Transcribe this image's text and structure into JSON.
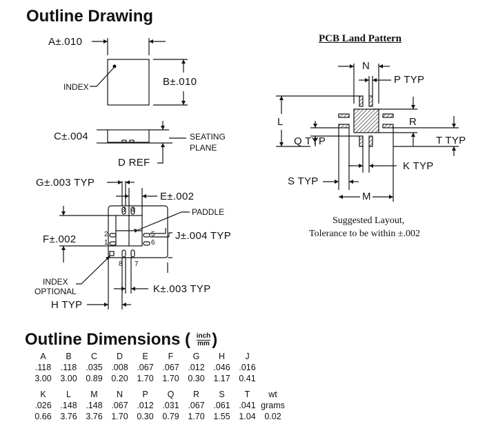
{
  "titles": {
    "outline_drawing": "Outline Drawing",
    "pcb_land_pattern": "PCB Land Pattern",
    "outline_dimensions": "Outline Dimensions (",
    "outline_dimensions_close": ")",
    "unit_top": "inch",
    "unit_bottom": "mm"
  },
  "labels": {
    "a": "A±.010",
    "b": "B±.010",
    "c": "C±.004",
    "d": "D REF",
    "index": "INDEX",
    "seating1": "SEATING",
    "seating2": "PLANE",
    "g": "G±.003 TYP",
    "e": "E±.002",
    "paddle": "PADDLE",
    "f": "F±.002",
    "j": "J±.004 TYP",
    "index_opt1": "INDEX",
    "index_opt2": "OPTIONAL",
    "k": "K±.003 TYP",
    "h": "H TYP",
    "pin3": "3",
    "pin4": "4",
    "pin2": "2",
    "pin1": "1",
    "pin5": "5",
    "pin6": "6",
    "pin8": "8",
    "pin7": "7"
  },
  "pcb_labels": {
    "n": "N",
    "p": "P TYP",
    "l": "L",
    "r": "R",
    "q": "Q TYP",
    "t": "T TYP",
    "k": "K TYP",
    "s": "S TYP",
    "m": "M",
    "note1": "Suggested Layout,",
    "note2": "Tolerance to be within ±.002"
  },
  "dimensions": {
    "row1_headers": [
      "A",
      "B",
      "C",
      "D",
      "E",
      "F",
      "G",
      "H",
      "J"
    ],
    "row1_inch": [
      ".118",
      ".118",
      ".035",
      ".008",
      ".067",
      ".067",
      ".012",
      ".046",
      ".016"
    ],
    "row1_mm": [
      "3.00",
      "3.00",
      "0.89",
      "0.20",
      "1.70",
      "1.70",
      "0.30",
      "1.17",
      "0.41"
    ],
    "row2_headers": [
      "K",
      "L",
      "M",
      "N",
      "P",
      "Q",
      "R",
      "S",
      "T",
      "wt"
    ],
    "row2_inch": [
      ".026",
      ".148",
      ".148",
      ".067",
      ".012",
      ".031",
      ".067",
      ".061",
      ".041",
      "grams"
    ],
    "row2_mm": [
      "0.66",
      "3.76",
      "3.76",
      "1.70",
      "0.30",
      "0.79",
      "1.70",
      "1.55",
      "1.04",
      "0.02"
    ]
  }
}
